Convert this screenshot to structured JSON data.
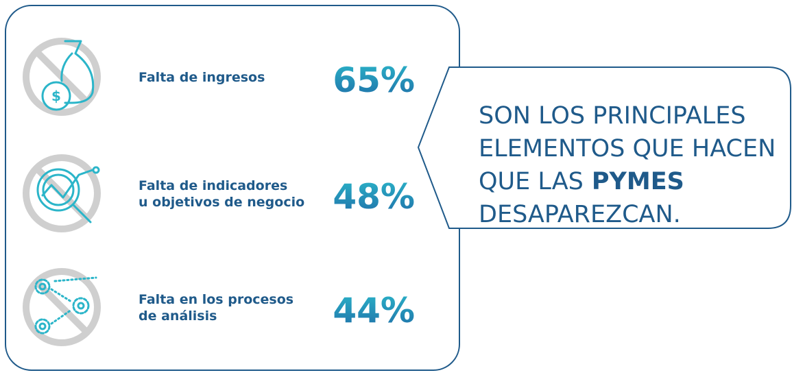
{
  "items": [
    {
      "label": [
        "Falta de ingresos"
      ],
      "value": "65%"
    },
    {
      "label": [
        "Falta de indicadores",
        "u objetivos de negocio"
      ],
      "value": "48%"
    },
    {
      "label": [
        "Falta en los procesos",
        "de análisis"
      ],
      "value": "44%"
    }
  ],
  "callout": {
    "lines": [
      "SON LOS PRINCIPALES",
      "ELEMENTOS QUE HACEN",
      "QUE LAS",
      "DESAPAREZCAN."
    ],
    "emphasis": "PYMES"
  }
}
